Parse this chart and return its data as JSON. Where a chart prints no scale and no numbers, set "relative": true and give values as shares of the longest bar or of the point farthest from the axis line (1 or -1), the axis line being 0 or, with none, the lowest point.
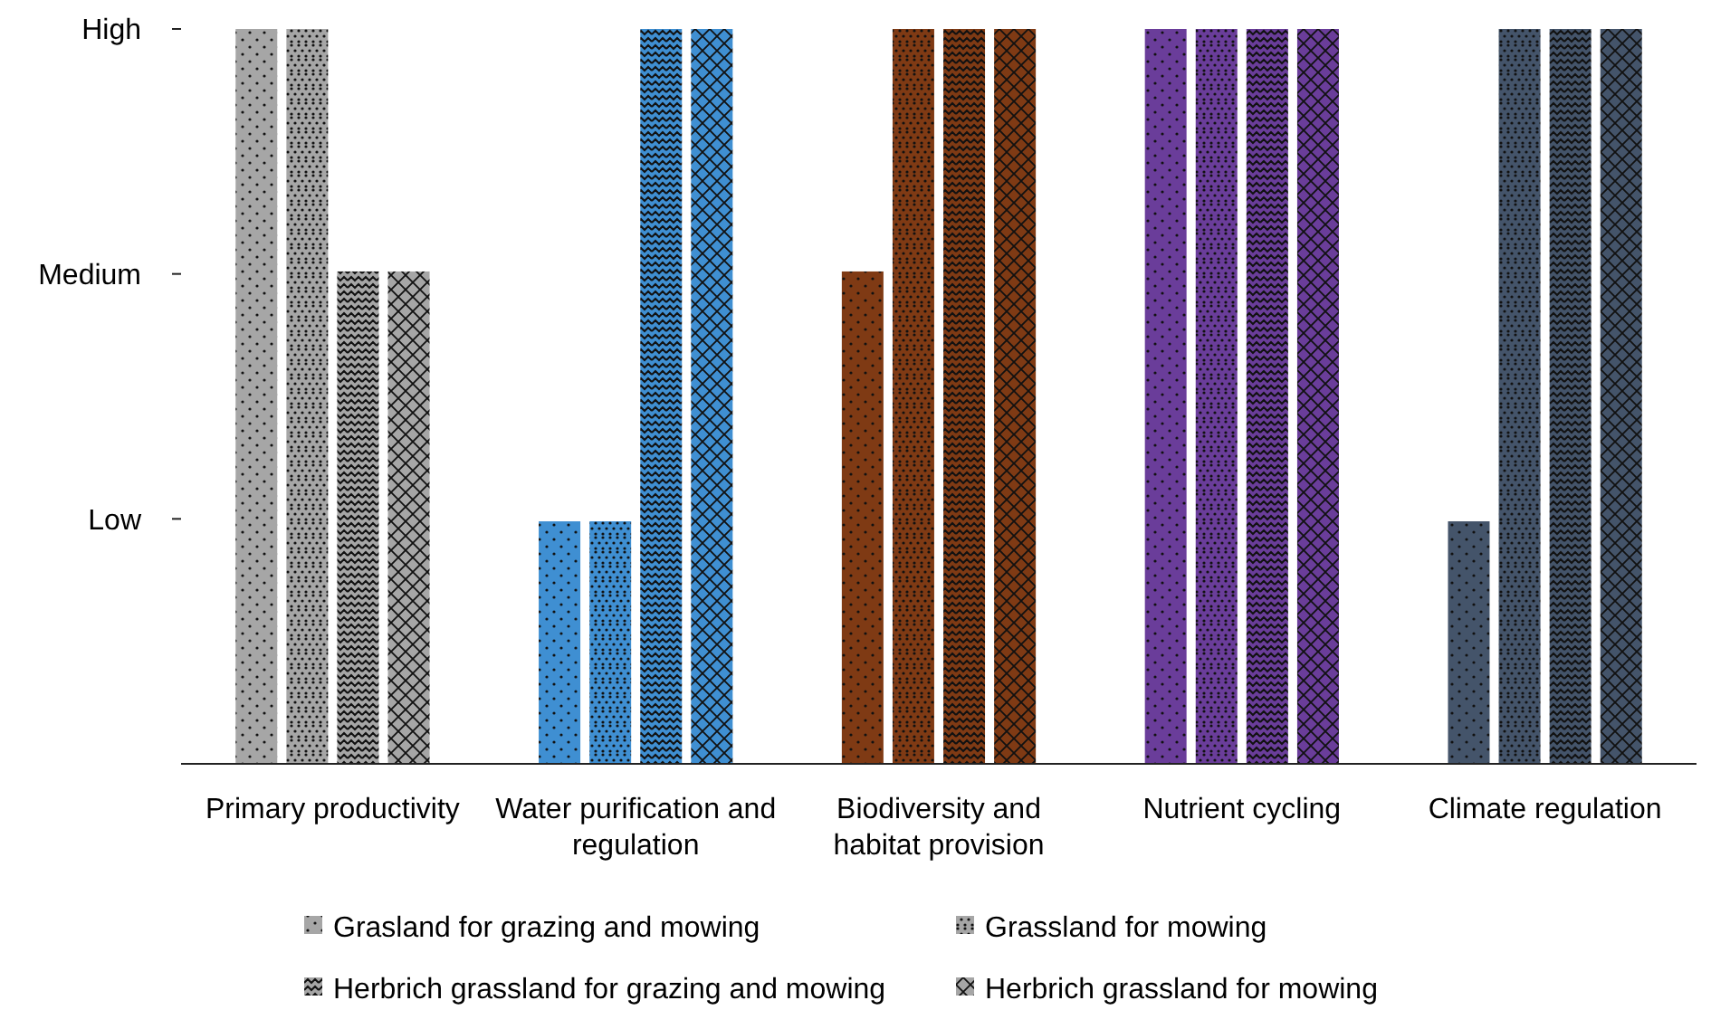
{
  "chart_data": {
    "type": "bar",
    "relative": true,
    "categories": [
      "Primary productivity",
      "Water purification and regulation",
      "Biodiversity and habitat provision",
      "Nutrient cycling",
      "Climate regulation"
    ],
    "series": [
      {
        "name": "Grasland for grazing and mowing",
        "color": "#a6a6a6",
        "colors": [
          "#a6a6a6",
          "#3f8fd2",
          "#7f3a14",
          "#6a3d9a",
          "#44546a"
        ],
        "values": [
          1,
          0.33,
          0.67,
          1,
          0.33
        ]
      },
      {
        "name": "Grassland for mowing",
        "color": "#a6a6a6",
        "colors": [
          "#a6a6a6",
          "#3f8fd2",
          "#7f3a14",
          "#6a3d9a",
          "#44546a"
        ],
        "values": [
          1,
          0.33,
          1,
          1,
          1
        ]
      },
      {
        "name": "Herbrich grassland for grazing and mowing",
        "color": "#a6a6a6",
        "colors": [
          "#a6a6a6",
          "#3f8fd2",
          "#7f3a14",
          "#6a3d9a",
          "#44546a"
        ],
        "values": [
          0.67,
          1,
          1,
          1,
          1
        ]
      },
      {
        "name": "Herbrich grassland for mowing",
        "color": "#a6a6a6",
        "colors": [
          "#a6a6a6",
          "#3f8fd2",
          "#7f3a14",
          "#6a3d9a",
          "#44546a"
        ],
        "values": [
          0.67,
          1,
          1,
          1,
          1
        ]
      }
    ],
    "annotations": [
      "Low",
      "Medium",
      "High"
    ],
    "grid": false,
    "legend": "bottom"
  }
}
